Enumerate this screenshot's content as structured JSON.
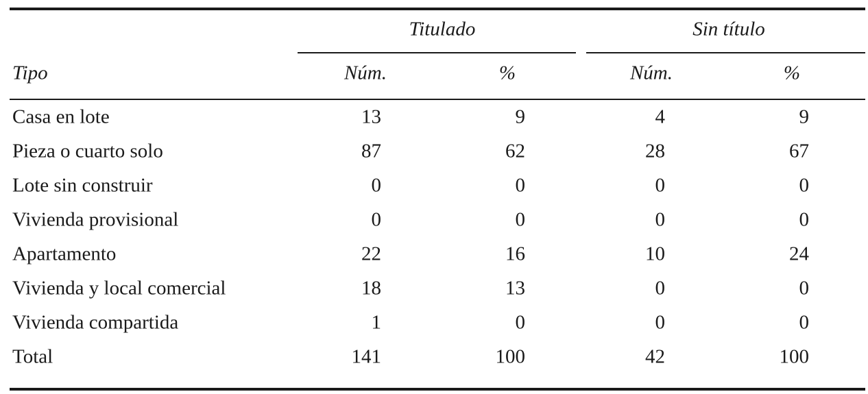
{
  "table": {
    "groups": [
      "Titulado",
      "Sin título"
    ],
    "columns": [
      "Tipo",
      "Núm.",
      "%",
      "Núm.",
      "%"
    ],
    "rows": [
      [
        "Casa en lote",
        13,
        9,
        4,
        9
      ],
      [
        "Pieza o cuarto solo",
        87,
        62,
        28,
        67
      ],
      [
        "Lote sin construir",
        0,
        0,
        0,
        0
      ],
      [
        "Vivienda provisional",
        0,
        0,
        0,
        0
      ],
      [
        "Apartamento",
        22,
        16,
        10,
        24
      ],
      [
        "Vivienda y local comercial",
        18,
        13,
        0,
        0
      ],
      [
        "Vivienda compartida",
        1,
        0,
        0,
        0
      ],
      [
        "Total",
        141,
        100,
        42,
        100
      ]
    ]
  }
}
